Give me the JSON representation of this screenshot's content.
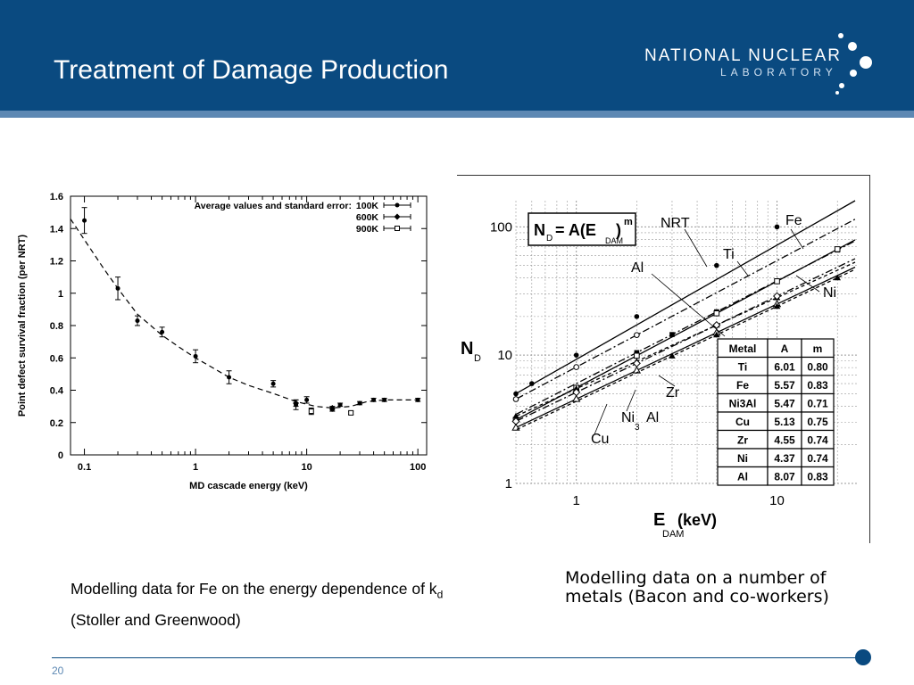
{
  "slide": {
    "title": "Treatment of Damage Production",
    "page_number": "20",
    "logo": {
      "line1": "NATIONAL NUCLEAR",
      "line2": "LABORATORY"
    },
    "header_color": "#0a4a80",
    "stripe_color": "#5d88b3"
  },
  "captions": {
    "left": {
      "text": "Modelling data for Fe on the energy dependence of k",
      "subscript": "d",
      "suffix": " (Stoller and Greenwood)"
    },
    "right": "Modelling data on a number of metals (Bacon and co-workers)"
  },
  "chart_data": [
    {
      "type": "scatter",
      "xlabel": "MD cascade energy (keV)",
      "ylabel": "Point defect survival fraction (per NRT)",
      "xscale": "log",
      "xlim": [
        0.075,
        120
      ],
      "ylim": [
        0,
        1.6
      ],
      "xticks": [
        "0.1",
        "1",
        "10",
        "100"
      ],
      "yticks": [
        "0",
        "0.2",
        "0.4",
        "0.6",
        "0.8",
        "1",
        "1.2",
        "1.4",
        "1.6"
      ],
      "legend_title": "Average values and standard error:",
      "legend_position": "top-right",
      "series": [
        {
          "name": "100K",
          "marker": "circle",
          "points": [
            [
              0.1,
              1.45,
              0.08
            ],
            [
              0.2,
              1.03,
              0.07
            ],
            [
              0.3,
              0.83,
              0.03
            ],
            [
              0.5,
              0.76,
              0.03
            ],
            [
              1,
              0.61,
              0.04
            ],
            [
              2,
              0.48,
              0.04
            ],
            [
              5,
              0.44,
              0.02
            ],
            [
              8,
              0.31,
              0.03
            ],
            [
              10,
              0.34,
              0.02
            ],
            [
              17,
              0.28,
              0.01
            ],
            [
              20,
              0.31,
              0.01
            ],
            [
              30,
              0.32,
              0.01
            ],
            [
              40,
              0.34,
              0.01
            ],
            [
              50,
              0.34,
              0.01
            ],
            [
              100,
              0.34,
              0.01
            ]
          ]
        },
        {
          "name": "600K",
          "marker": "diamond",
          "points": [
            [
              8,
              0.32,
              0.02
            ],
            [
              17,
              0.29,
              0.01
            ]
          ]
        },
        {
          "name": "900K",
          "marker": "square-open",
          "points": [
            [
              11,
              0.27,
              0.02
            ],
            [
              25,
              0.26,
              0.01
            ]
          ]
        }
      ],
      "fit_curve": [
        [
          0.075,
          1.46
        ],
        [
          0.1,
          1.33
        ],
        [
          0.15,
          1.15
        ],
        [
          0.2,
          1.03
        ],
        [
          0.3,
          0.87
        ],
        [
          0.5,
          0.74
        ],
        [
          0.7,
          0.67
        ],
        [
          1,
          0.6
        ],
        [
          1.5,
          0.53
        ],
        [
          2,
          0.48
        ],
        [
          3,
          0.43
        ],
        [
          5,
          0.38
        ],
        [
          8,
          0.33
        ],
        [
          12,
          0.3
        ],
        [
          17,
          0.29
        ],
        [
          25,
          0.3
        ],
        [
          35,
          0.33
        ],
        [
          50,
          0.34
        ],
        [
          70,
          0.34
        ],
        [
          100,
          0.34
        ]
      ]
    },
    {
      "type": "line",
      "xlabel": "E",
      "xlabel_sub": "DAM",
      "xlabel_unit": "(keV)",
      "ylabel": "N",
      "ylabel_sub": "D",
      "xscale": "log",
      "yscale": "log",
      "xlim": [
        0.5,
        25
      ],
      "ylim": [
        1,
        160
      ],
      "xticks": [
        "1",
        "10"
      ],
      "yticks": [
        "1",
        "10",
        "100"
      ],
      "formula": {
        "lhs": "N",
        "lhs_sub": "D",
        "eq": "=  A(E",
        "eq_sub": "DAM",
        "rhs": ")",
        "exp": "m"
      },
      "line_labels": [
        "NRT",
        "Fe",
        "Ti",
        "Al",
        "Ni",
        "Zr",
        "Ni",
        "3",
        "Al",
        "Cu"
      ],
      "series": [
        {
          "name": "NRT",
          "A": 10,
          "m": 1.0,
          "marker": "circle",
          "x": [
            0.5,
            0.6,
            1,
            2,
            5,
            10
          ]
        },
        {
          "name": "Ti",
          "A": 6.01,
          "m": 0.8,
          "marker": "square",
          "x": [
            2,
            3,
            5,
            10,
            20
          ]
        },
        {
          "name": "Fe",
          "A": 5.57,
          "m": 0.83,
          "marker": "square-open",
          "x": [
            0.5,
            1,
            2,
            5,
            10,
            20
          ]
        },
        {
          "name": "Ni3Al",
          "A": 5.47,
          "m": 0.71,
          "marker": "triangle",
          "x": [
            0.5,
            1,
            2,
            5,
            10
          ]
        },
        {
          "name": "Cu",
          "A": 5.13,
          "m": 0.75,
          "marker": "diamond-open",
          "x": [
            0.5,
            1,
            2,
            5,
            10
          ]
        },
        {
          "name": "Zr",
          "A": 4.55,
          "m": 0.74,
          "marker": "triangle-open",
          "x": [
            0.5,
            1,
            2,
            5,
            10
          ]
        },
        {
          "name": "Ni",
          "A": 4.37,
          "m": 0.74,
          "marker": "triangle",
          "x": [
            3,
            5,
            10,
            20
          ]
        },
        {
          "name": "Al",
          "A": 8.07,
          "m": 0.83,
          "marker": "circle-open",
          "x": [
            0.5,
            1,
            2
          ]
        }
      ],
      "table": {
        "headers": [
          "Metal",
          "A",
          "m"
        ],
        "rows": [
          [
            "Ti",
            "6.01",
            "0.80"
          ],
          [
            "Fe",
            "5.57",
            "0.83"
          ],
          [
            "Ni3Al",
            "5.47",
            "0.71"
          ],
          [
            "Cu",
            "5.13",
            "0.75"
          ],
          [
            "Zr",
            "4.55",
            "0.74"
          ],
          [
            "Ni",
            "4.37",
            "0.74"
          ],
          [
            "Al",
            "8.07",
            "0.83"
          ]
        ]
      }
    }
  ]
}
